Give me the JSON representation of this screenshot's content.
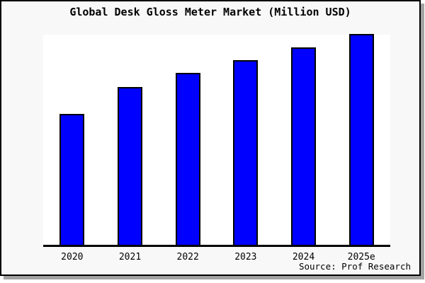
{
  "chart_data": {
    "type": "bar",
    "title": "Global Desk Gloss Meter Market (Million USD)",
    "categories": [
      "2020",
      "2021",
      "2022",
      "2023",
      "2024",
      "2025e"
    ],
    "values": [
      62.2,
      74.9,
      81.6,
      87.6,
      93.6,
      100
    ],
    "value_scale": "relative index, 2025e = 100 (y-axis unlabeled in chart)",
    "xlabel": "",
    "ylabel": "",
    "ylim": [
      0,
      100.7
    ],
    "grid": false,
    "legend": "none",
    "source": "Source: Prof Research",
    "bar_color": "#0000ff"
  },
  "figure": {
    "title": "Global Desk Gloss Meter Market (Million USD)",
    "source_note": "Source: Prof Research",
    "colors": {
      "bar_fill": "#0000ff",
      "bar_border": "#000000",
      "figure_bg": "#f8f8f8",
      "plot_bg": "#ffffff",
      "figure_border": "#000000",
      "shadow": "#a3a3a3",
      "text": "#000000"
    }
  }
}
